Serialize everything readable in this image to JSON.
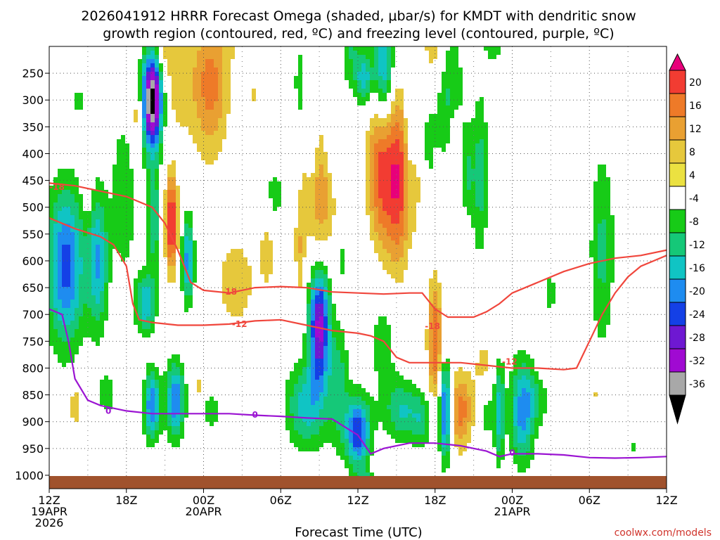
{
  "chart_data": {
    "type": "heatmap",
    "title_lines": [
      "2026041912 HRRR Forecast Omega (shaded, μbar/s) for KMDT with dendritic snow",
      "growth region (contoured, red, ºC) and freezing level (contoured, purple, ºC)"
    ],
    "xlabel": "Forecast Time (UTC)",
    "credit": "coolwx.com/models",
    "x_hours_range": [
      0,
      48
    ],
    "x_ticks": [
      {
        "hour": 0,
        "lines": [
          "12Z",
          "19APR",
          "2026"
        ]
      },
      {
        "hour": 6,
        "lines": [
          "18Z"
        ]
      },
      {
        "hour": 12,
        "lines": [
          "00Z",
          "20APR"
        ]
      },
      {
        "hour": 18,
        "lines": [
          "06Z"
        ]
      },
      {
        "hour": 24,
        "lines": [
          "12Z"
        ]
      },
      {
        "hour": 30,
        "lines": [
          "18Z"
        ]
      },
      {
        "hour": 36,
        "lines": [
          "00Z",
          "21APR"
        ]
      },
      {
        "hour": 42,
        "lines": [
          "06Z"
        ]
      },
      {
        "hour": 48,
        "lines": [
          "12Z"
        ]
      }
    ],
    "y_ticks": [
      "250",
      "300",
      "350",
      "400",
      "450",
      "500",
      "550",
      "600",
      "650",
      "700",
      "750",
      "800",
      "850",
      "900",
      "950",
      "1000"
    ],
    "y_values": [
      250,
      300,
      350,
      400,
      450,
      500,
      550,
      600,
      650,
      700,
      750,
      800,
      850,
      900,
      950,
      1000
    ],
    "y_range": [
      200,
      1025
    ],
    "colorbar": {
      "labels": [
        "20",
        "16",
        "12",
        "8",
        "4",
        "-4",
        "-8",
        "-12",
        "-16",
        "-20",
        "-24",
        "-28",
        "-32",
        "-36"
      ],
      "colors": [
        "#e8007a",
        "#f23c32",
        "#ee7a28",
        "#e9a032",
        "#e6c83c",
        "#ebe141",
        "#ffffff",
        "#17cb17",
        "#15c878",
        "#10c4c4",
        "#1e8cf0",
        "#1440e6",
        "#6e18d2",
        "#a00ad2",
        "#a8a8a8",
        "#000000"
      ]
    },
    "contour_labels": [
      {
        "text": "-18",
        "color": "#f0463c"
      },
      {
        "text": "-18",
        "color": "#f0463c"
      },
      {
        "text": "-12",
        "color": "#f0463c"
      },
      {
        "text": "-18",
        "color": "#f0463c"
      },
      {
        "text": "-12",
        "color": "#f0463c"
      },
      {
        "text": "0",
        "color": "#9b14d2"
      },
      {
        "text": "0",
        "color": "#9b14d2"
      },
      {
        "text": "0",
        "color": "#9b14d2"
      }
    ],
    "series": [
      {
        "name": "-18C isotherm (upper)",
        "color": "#f0463c",
        "hours": [
          0,
          2,
          4,
          6,
          8,
          9,
          10,
          11,
          12,
          14,
          16,
          18,
          20,
          22,
          24,
          26,
          28,
          29,
          30,
          31,
          33,
          34,
          35,
          36,
          38,
          40,
          42,
          44,
          46,
          48
        ],
        "pressures": [
          455,
          460,
          470,
          480,
          500,
          530,
          580,
          640,
          655,
          660,
          650,
          648,
          650,
          658,
          660,
          662,
          660,
          660,
          690,
          705,
          705,
          695,
          680,
          660,
          640,
          620,
          605,
          595,
          590,
          580
        ]
      },
      {
        "name": "-12C isotherm",
        "color": "#f0463c",
        "hours": [
          0,
          2,
          4,
          5,
          6,
          6.5,
          7,
          8,
          10,
          12,
          14,
          16,
          18,
          20,
          22,
          24,
          25,
          26,
          27,
          28,
          29,
          30,
          32,
          34,
          36,
          37,
          38,
          40,
          41,
          42,
          43,
          44,
          45,
          46,
          47,
          48
        ],
        "pressures": [
          520,
          540,
          555,
          570,
          610,
          680,
          710,
          715,
          720,
          720,
          718,
          712,
          710,
          720,
          730,
          735,
          740,
          750,
          780,
          790,
          790,
          790,
          790,
          795,
          800,
          800,
          800,
          803,
          800,
          750,
          700,
          660,
          630,
          610,
          600,
          590
        ]
      },
      {
        "name": "0C freezing level",
        "color": "#9b14d2",
        "hours": [
          0,
          1,
          1.5,
          2,
          3,
          4,
          6,
          8,
          10,
          12,
          14,
          16,
          18,
          20,
          22,
          24,
          25,
          26,
          28,
          30,
          32,
          34,
          35,
          36,
          37,
          38,
          40,
          42,
          44,
          46,
          48
        ],
        "pressures": [
          690,
          700,
          750,
          820,
          860,
          870,
          880,
          885,
          885,
          885,
          885,
          888,
          890,
          893,
          895,
          925,
          960,
          950,
          940,
          940,
          945,
          955,
          965,
          960,
          960,
          960,
          962,
          967,
          968,
          967,
          965
        ]
      }
    ],
    "omega_cells": [
      {
        "h": 8.0,
        "p": 300,
        "rh": 1.0,
        "rp": 115,
        "peak": -40
      },
      {
        "h": 6.8,
        "p": 330,
        "rh": 0.7,
        "rp": 90,
        "peak": 8
      },
      {
        "h": 9.0,
        "p": 180,
        "rh": 1.4,
        "rp": 90,
        "peak": 8
      },
      {
        "h": 8.1,
        "p": 520,
        "rh": 0.7,
        "rp": 120,
        "peak": -12
      },
      {
        "h": 7.5,
        "p": 680,
        "rh": 1.0,
        "rp": 70,
        "peak": -16
      },
      {
        "h": 8.0,
        "p": 870,
        "rh": 0.8,
        "rp": 80,
        "peak": -20
      },
      {
        "h": 10.0,
        "p": 280,
        "rh": 1.5,
        "rp": 130,
        "peak": 5
      },
      {
        "h": 9.5,
        "p": 530,
        "rh": 0.6,
        "rp": 110,
        "peak": 22
      },
      {
        "h": 10.8,
        "p": 600,
        "rh": 0.6,
        "rp": 100,
        "peak": -18
      },
      {
        "h": 9.8,
        "p": 860,
        "rh": 0.9,
        "rp": 90,
        "peak": -20
      },
      {
        "h": 12.5,
        "p": 270,
        "rh": 1.8,
        "rp": 160,
        "peak": 14
      },
      {
        "h": 14.5,
        "p": 180,
        "rh": 1.0,
        "rp": 60,
        "peak": 6
      },
      {
        "h": 12.5,
        "p": 520,
        "rh": 1.0,
        "rp": 90,
        "peak": 5
      },
      {
        "h": 15.0,
        "p": 230,
        "rh": 0.8,
        "rp": 80,
        "peak": -5
      },
      {
        "h": 1.3,
        "p": 610,
        "rh": 1.8,
        "rp": 180,
        "peak": -22
      },
      {
        "h": 2.3,
        "p": 300,
        "rh": 0.6,
        "rp": 40,
        "peak": -6
      },
      {
        "h": 3.0,
        "p": 430,
        "rh": 0.5,
        "rp": 120,
        "peak": 6
      },
      {
        "h": 3.8,
        "p": 600,
        "rh": 1.0,
        "rp": 160,
        "peak": -16
      },
      {
        "h": 2.0,
        "p": 870,
        "rh": 0.6,
        "rp": 50,
        "peak": 8
      },
      {
        "h": 5.0,
        "p": 280,
        "rh": 0.4,
        "rp": 60,
        "peak": 4
      },
      {
        "h": 5.8,
        "p": 480,
        "rh": 1.2,
        "rp": 180,
        "peak": -8
      },
      {
        "h": 4.5,
        "p": 850,
        "rh": 1.0,
        "rp": 60,
        "peak": -6
      },
      {
        "h": 11.6,
        "p": 850,
        "rh": 0.6,
        "rp": 60,
        "peak": 6
      },
      {
        "h": 12.5,
        "p": 880,
        "rh": 1.5,
        "rp": 50,
        "peak": -6
      },
      {
        "h": 14.5,
        "p": 640,
        "rh": 2.0,
        "rp": 110,
        "peak": 7
      },
      {
        "h": 13.0,
        "p": 530,
        "rh": 0.9,
        "rp": 60,
        "peak": -6
      },
      {
        "h": 16.0,
        "p": 290,
        "rh": 0.5,
        "rp": 40,
        "peak": 5
      },
      {
        "h": 17.5,
        "p": 480,
        "rh": 1.0,
        "rp": 80,
        "peak": -6
      },
      {
        "h": 17.0,
        "p": 580,
        "rh": 0.8,
        "rp": 100,
        "peak": 6
      },
      {
        "h": 19.5,
        "p": 270,
        "rh": 0.5,
        "rp": 80,
        "peak": -8
      },
      {
        "h": 19.5,
        "p": 580,
        "rh": 0.5,
        "rp": 120,
        "peak": 7
      },
      {
        "h": 21.0,
        "p": 470,
        "rh": 1.5,
        "rp": 170,
        "peak": 12
      },
      {
        "h": 22.0,
        "p": 380,
        "rh": 1.0,
        "rp": 90,
        "peak": -6
      },
      {
        "h": 20.5,
        "p": 400,
        "rh": 0.6,
        "rp": 120,
        "peak": -6
      },
      {
        "h": 21.0,
        "p": 720,
        "rh": 1.0,
        "rp": 140,
        "peak": -30
      },
      {
        "h": 20.0,
        "p": 870,
        "rh": 2.0,
        "rp": 100,
        "peak": -14
      },
      {
        "h": 22.5,
        "p": 830,
        "rh": 1.0,
        "rp": 140,
        "peak": -10
      },
      {
        "h": 22.8,
        "p": 600,
        "rh": 0.3,
        "rp": 50,
        "peak": -6
      },
      {
        "h": 21.5,
        "p": 160,
        "rh": 1.2,
        "rp": 60,
        "peak": -6
      },
      {
        "h": 23.5,
        "p": 200,
        "rh": 1.0,
        "rp": 110,
        "peak": -8
      },
      {
        "h": 24.5,
        "p": 260,
        "rh": 0.8,
        "rp": 60,
        "peak": -14
      },
      {
        "h": 25.5,
        "p": 420,
        "rh": 1.0,
        "rp": 160,
        "peak": 10
      },
      {
        "h": 27.0,
        "p": 450,
        "rh": 1.8,
        "rp": 200,
        "peak": 21
      },
      {
        "h": 26.0,
        "p": 240,
        "rh": 1.0,
        "rp": 130,
        "peak": -18
      },
      {
        "h": 28.0,
        "p": 360,
        "rh": 0.6,
        "rp": 250,
        "peak": -8
      },
      {
        "h": 24.0,
        "p": 920,
        "rh": 1.2,
        "rp": 80,
        "peak": -24
      },
      {
        "h": 24.5,
        "p": 1010,
        "rh": 0.9,
        "rp": 30,
        "peak": -8
      },
      {
        "h": 26.0,
        "p": 750,
        "rh": 1.5,
        "rp": 140,
        "peak": -6
      },
      {
        "h": 27.5,
        "p": 880,
        "rh": 1.8,
        "rp": 70,
        "peak": -12
      },
      {
        "h": 29.0,
        "p": 900,
        "rh": 1.0,
        "rp": 60,
        "peak": -8
      },
      {
        "h": 30.0,
        "p": 200,
        "rh": 1.2,
        "rp": 130,
        "peak": 8
      },
      {
        "h": 31.0,
        "p": 290,
        "rh": 1.5,
        "rp": 160,
        "peak": -10
      },
      {
        "h": 29.5,
        "p": 380,
        "rh": 0.6,
        "rp": 110,
        "peak": -6
      },
      {
        "h": 30.0,
        "p": 750,
        "rh": 0.7,
        "rp": 140,
        "peak": 16
      },
      {
        "h": 31.5,
        "p": 390,
        "rh": 0.6,
        "rp": 120,
        "peak": 6
      },
      {
        "h": 32.5,
        "p": 440,
        "rh": 0.6,
        "rp": 100,
        "peak": -8
      },
      {
        "h": 33.5,
        "p": 440,
        "rh": 0.8,
        "rp": 190,
        "peak": -10
      },
      {
        "h": 30.8,
        "p": 880,
        "rh": 0.6,
        "rp": 110,
        "peak": -24
      },
      {
        "h": 32.0,
        "p": 880,
        "rh": 1.2,
        "rp": 90,
        "peak": 14
      },
      {
        "h": 33.8,
        "p": 800,
        "rh": 1.0,
        "rp": 70,
        "peak": 6
      },
      {
        "h": 34.0,
        "p": 880,
        "rh": 0.8,
        "rp": 80,
        "peak": -6
      },
      {
        "h": 35.0,
        "p": 880,
        "rh": 0.5,
        "rp": 120,
        "peak": -14
      },
      {
        "h": 34.5,
        "p": 200,
        "rh": 1.0,
        "rp": 50,
        "peak": -6
      },
      {
        "h": 36.8,
        "p": 880,
        "rh": 1.2,
        "rp": 120,
        "peak": -18
      },
      {
        "h": 38.0,
        "p": 860,
        "rh": 1.2,
        "rp": 60,
        "peak": -6
      },
      {
        "h": 43.0,
        "p": 580,
        "rh": 1.2,
        "rp": 230,
        "peak": -9
      },
      {
        "h": 40.0,
        "p": 500,
        "rh": 0.3,
        "rp": 40,
        "peak": 4
      },
      {
        "h": 42.5,
        "p": 850,
        "rh": 0.4,
        "rp": 30,
        "peak": 5
      },
      {
        "h": 45.5,
        "p": 950,
        "rh": 0.3,
        "rp": 20,
        "peak": -6
      },
      {
        "h": 39.0,
        "p": 660,
        "rh": 0.6,
        "rp": 60,
        "peak": -6
      }
    ]
  }
}
